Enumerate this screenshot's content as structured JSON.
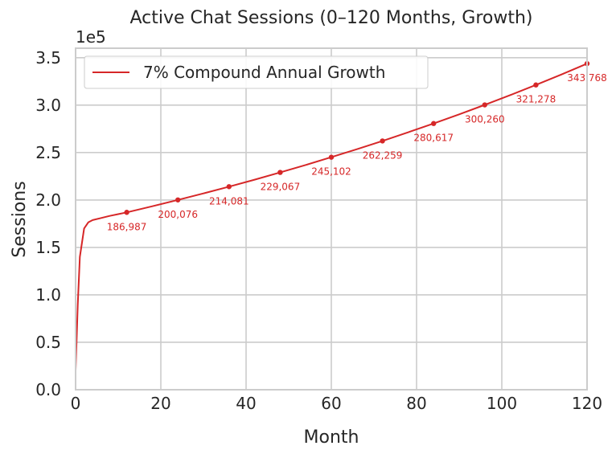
{
  "chart_data": {
    "type": "line",
    "title": "Active Chat Sessions (0–120 Months, Growth)",
    "xlabel": "Month",
    "ylabel": "Sessions",
    "y_offset_label": "1e5",
    "xlim": [
      0,
      120
    ],
    "ylim": [
      0,
      360000
    ],
    "xticks": [
      0,
      20,
      40,
      60,
      80,
      100,
      120
    ],
    "yticks": [
      0,
      50000,
      100000,
      150000,
      200000,
      250000,
      300000,
      350000
    ],
    "ytick_labels": [
      "0.0",
      "0.5",
      "1.0",
      "1.5",
      "2.0",
      "2.5",
      "3.0",
      "3.5"
    ],
    "grid": true,
    "legend": "upper-left",
    "series": [
      {
        "name": "7% Compound Annual Growth",
        "color": "#d62728",
        "x": [
          0,
          0.5,
          1,
          2,
          3,
          4,
          6,
          8,
          10,
          12,
          18,
          24,
          30,
          36,
          42,
          48,
          54,
          60,
          66,
          72,
          78,
          84,
          90,
          96,
          102,
          108,
          114,
          120
        ],
        "y": [
          20000,
          90000,
          140000,
          170000,
          176500,
          178800,
          181000,
          183200,
          185100,
          186987,
          193400,
          200076,
          206900,
          214081,
          221400,
          229067,
          236900,
          245102,
          253500,
          262259,
          271300,
          280617,
          290300,
          300260,
          310600,
          321278,
          332300,
          343768
        ]
      }
    ],
    "markers": {
      "x": [
        12,
        24,
        36,
        48,
        60,
        72,
        84,
        96,
        108,
        120
      ],
      "y": [
        186987,
        200076,
        214081,
        229067,
        245102,
        262259,
        280617,
        300260,
        321278,
        343768
      ],
      "labels": [
        "186,987",
        "200,076",
        "214,081",
        "229,067",
        "245,102",
        "262,259",
        "280,617",
        "300,260",
        "321,278",
        "343,768"
      ]
    }
  }
}
